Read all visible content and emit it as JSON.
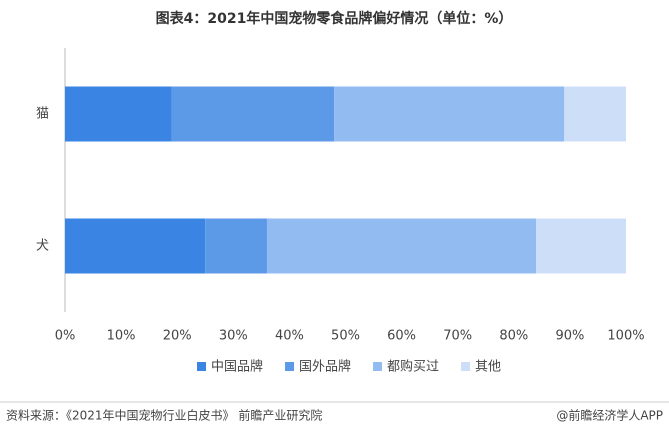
{
  "chart_data": {
    "type": "stacked-bar-horizontal",
    "title": "图表4：2021年中国宠物零食品牌偏好情况（单位：%）",
    "categories": [
      "猫",
      "犬"
    ],
    "series": [
      {
        "name": "中国品牌",
        "color": "#3a84e3",
        "values": [
          19,
          25
        ]
      },
      {
        "name": "国外品牌",
        "color": "#5c9ae8",
        "values": [
          29,
          11
        ]
      },
      {
        "name": "都购买过",
        "color": "#92bcf1",
        "values": [
          41,
          48
        ]
      },
      {
        "name": "其他",
        "color": "#cddff8",
        "values": [
          11,
          16
        ]
      }
    ],
    "xlim": [
      0,
      100
    ],
    "xticks": [
      {
        "value": 0,
        "label": "0%"
      },
      {
        "value": 10,
        "label": "10%"
      },
      {
        "value": 20,
        "label": "20%"
      },
      {
        "value": 30,
        "label": "30%"
      },
      {
        "value": 40,
        "label": "40%"
      },
      {
        "value": 50,
        "label": "50%"
      },
      {
        "value": 60,
        "label": "60%"
      },
      {
        "value": 70,
        "label": "70%"
      },
      {
        "value": 80,
        "label": "80%"
      },
      {
        "value": 90,
        "label": "90%"
      },
      {
        "value": 100,
        "label": "100%"
      }
    ],
    "source": "资料来源：《2021年中国宠物行业白皮书》 前瞻产业研究院",
    "credit": "@前瞻经济学人APP"
  }
}
